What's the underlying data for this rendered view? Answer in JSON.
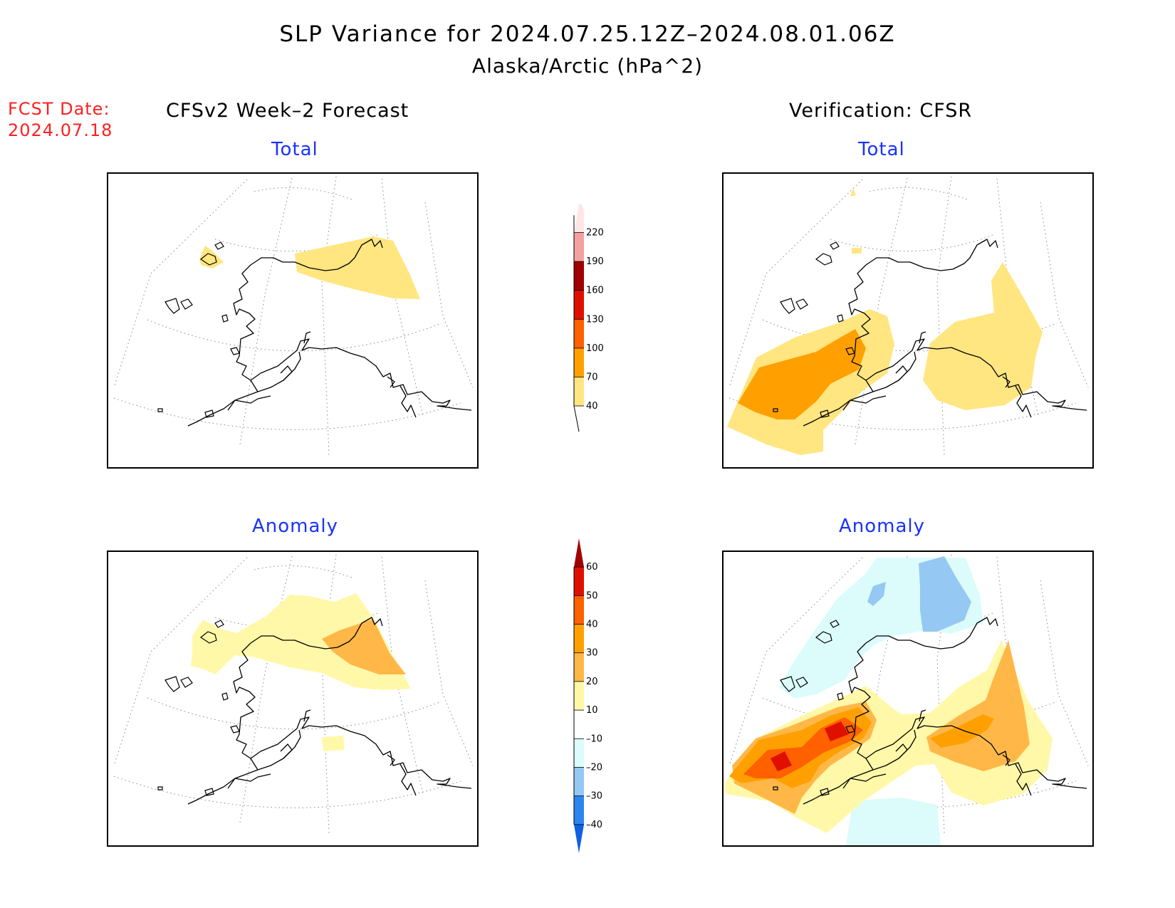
{
  "title": "SLP Variance for 2024.07.25.12Z–2024.08.01.06Z",
  "subtitle": "Alaska/Arctic (hPa^2)",
  "fcst": {
    "line1": "FCST Date:",
    "line2": "2024.07.18"
  },
  "columns": {
    "left": "CFSv2 Week–2 Forecast",
    "right": "Verification: CFSR"
  },
  "panels": {
    "fcst_total": {
      "label": "Total"
    },
    "verif_total": {
      "label": "Total"
    },
    "fcst_anomaly": {
      "label": "Anomaly"
    },
    "verif_anomaly": {
      "label": "Anomaly"
    }
  },
  "colorbars": {
    "total": {
      "ticks": [
        "40",
        "70",
        "100",
        "130",
        "160",
        "190",
        "220"
      ],
      "colors": [
        "#ffe680",
        "#ffa000",
        "#ff6000",
        "#e01000",
        "#a00000",
        "#f4a0a0",
        "#ffe6e6"
      ]
    },
    "anomaly": {
      "ticks": [
        "–40",
        "–30",
        "–20",
        "–10",
        "10",
        "20",
        "30",
        "40",
        "50",
        "60"
      ],
      "colors": [
        "#1060e0",
        "#2c86ee",
        "#96c8f4",
        "#dcfcfc",
        "#ffffff",
        "#fff8a8",
        "#ffb848",
        "#ffa000",
        "#ff6000",
        "#e01000",
        "#a00000"
      ]
    }
  }
}
